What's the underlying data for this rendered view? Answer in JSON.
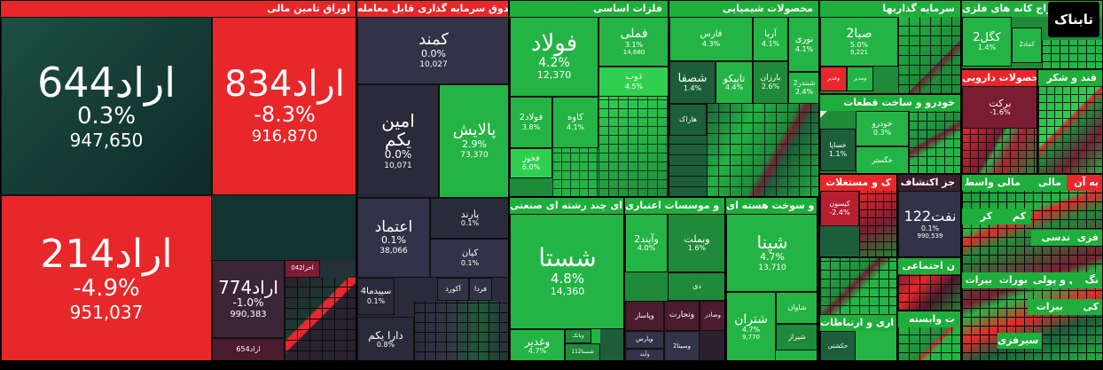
{
  "sections": {
    "bonds": "اوراق تامین مالی",
    "funds": "صندوق سرمایه گذاری قابل معامله",
    "basic_metals": "فلزات اساسی",
    "chemicals": "محصولات شیمیایی",
    "investment": "سرمایه گذاریها",
    "mining": "استخراج کانه های فلزی",
    "multi_industry": "ای چند رشته ای صنعتی",
    "credit": "و موسسات اعتباری",
    "nuclear": "و سوخت هسته ای",
    "auto": "خودرو و ساخت قطعات",
    "pharma": "محصولات دارویی",
    "sugar": "قند و شکر",
    "real_estate": "ک و مستغلات",
    "oil_ext": "جز اکتشاف",
    "social": "ن اجتماعی",
    "telecom": "اری و ارتباطات",
    "services": "ت وابسته"
  },
  "cells": {
    "arad644": {
      "sym": "اراد644",
      "pct": "0.3%",
      "vol": "947,650"
    },
    "arad834": {
      "sym": "اراد834",
      "pct": "-8.3%",
      "vol": "916,870"
    },
    "arad214": {
      "sym": "اراد214",
      "pct": "-4.9%",
      "vol": "951,037"
    },
    "arad774": {
      "sym": "اراد774",
      "pct": "-1.0%",
      "vol": "990,383"
    },
    "arad654": {
      "sym": "اراد654"
    },
    "akhza": {
      "sym": "اخزا042"
    },
    "kamand": {
      "sym": "کمند",
      "pct": "0.0%",
      "vol": "10,027"
    },
    "amin": {
      "sym": "امین\nیکم",
      "pct": "0.0%",
      "vol": "10,071"
    },
    "palayesh": {
      "sym": "پالایش",
      "pct": "2.9%",
      "vol": "73,370"
    },
    "etemad": {
      "sym": "اعتماد",
      "pct": "0.1%",
      "vol": "38,066"
    },
    "parand": {
      "sym": "پارند",
      "pct": "0.1%"
    },
    "kian": {
      "sym": "کیان",
      "pct": "0.1%"
    },
    "sepid": {
      "sym": "سپیدما4",
      "pct": "0.1%"
    },
    "aknord": {
      "sym": "آکورد"
    },
    "farda": {
      "sym": "فردا"
    },
    "dara": {
      "sym": "دارا یکم",
      "pct": "0.8%"
    },
    "foolad": {
      "sym": "فولاد",
      "pct": "4.2%",
      "vol": "12,370"
    },
    "fameli": {
      "sym": "فملی",
      "pct": "3.1%",
      "vol": "14,680"
    },
    "zob": {
      "sym": "ذوب",
      "pct": "4.5%"
    },
    "foolad2": {
      "sym": "فولاد2",
      "pct": "3.8%"
    },
    "kave": {
      "sym": "کاوه",
      "pct": "4.1%"
    },
    "fakhuz": {
      "sym": "فخوز",
      "pct": "6.0%"
    },
    "fars": {
      "sym": "فارس",
      "pct": "4.3%"
    },
    "shasfa": {
      "sym": "شصفا",
      "pct": "1.4%"
    },
    "tapiko": {
      "sym": "تاپیکو",
      "pct": "4.4%"
    },
    "aria": {
      "sym": "آریا",
      "pct": "4.1%"
    },
    "noori": {
      "sym": "نوری",
      "pct": "4.1%"
    },
    "jam": {
      "sym": "جم",
      "pct": "3.4%"
    },
    "baran": {
      "sym": "بارزان",
      "pct": "2.6%"
    },
    "shabandar": {
      "sym": "شبندر2",
      "pct": "2.4%"
    },
    "harak": {
      "sym": "هاراک"
    },
    "sabet": {
      "sym": "صبا2",
      "pct": "5.0%",
      "vol": "9,221"
    },
    "vaghadir": {
      "sym": "وغدیر"
    },
    "vamadir": {
      "sym": "ومدیر"
    },
    "kagol2": {
      "sym": "کگل2",
      "pct": "1.4%"
    },
    "kama": {
      "sym": "کماد2"
    },
    "kegol": {
      "sym": "کگل"
    },
    "shasta": {
      "sym": "شستا",
      "pct": "4.8%",
      "vol": "14,360"
    },
    "vaghadir2": {
      "sym": "وغدیر",
      "pct": "4.7%"
    },
    "vabank": {
      "sym": "وبانک"
    },
    "shasta112": {
      "sym": "شستا112"
    },
    "vatin": {
      "sym": "وآیند2",
      "pct": "4.0%"
    },
    "vamellat": {
      "sym": "وبملت",
      "pct": "1.6%"
    },
    "dey": {
      "sym": "دی"
    },
    "vapasar": {
      "sym": "وپاسار"
    },
    "vatejarat": {
      "sym": "وتجارت"
    },
    "vasadr": {
      "sym": "وصادر"
    },
    "vaparsian": {
      "sym": "وپارس"
    },
    "vasina": {
      "sym": "وسینا2"
    },
    "vaiand": {
      "sym": "وآیند"
    },
    "shapna": {
      "sym": "شپنا",
      "pct": "4.7%",
      "vol": "13,710"
    },
    "shatran": {
      "sym": "شتران",
      "pct": "4.7%",
      "vol": "9,770"
    },
    "shavan": {
      "sym": "شاوان"
    },
    "shiraz": {
      "sym": "شیراز"
    },
    "barakat": {
      "sym": "برکت",
      "pct": "-1.6%"
    },
    "khodro": {
      "sym": "خودرو",
      "pct": "0.3%"
    },
    "khasapa": {
      "sym": "خساپا",
      "pct": "1.1%"
    },
    "khegostar": {
      "sym": "خگستر"
    },
    "kisoon": {
      "sym": "کیسون",
      "pct": "-2.4%"
    },
    "naft122": {
      "sym": "نفت122",
      "pct": "0.1%",
      "vol": "990,539"
    },
    "hekhsht": {
      "sym": "حکشتی"
    }
  },
  "right_headers": [
    "کی",
    "مالی",
    "مالی واسط",
    "کر",
    "کم",
    "ندسی",
    "فزی",
    "بیرات",
    "بورات",
    "ورن",
    "ي و پولی",
    "نگ",
    "به آن",
    "بیزات",
    "سیرفزی"
  ],
  "logo": "تابناک",
  "colors": {
    "red": "#e8272a",
    "green": "#2fd04f",
    "dark_green": "#143a33",
    "neutral": "#2a2a3a"
  }
}
